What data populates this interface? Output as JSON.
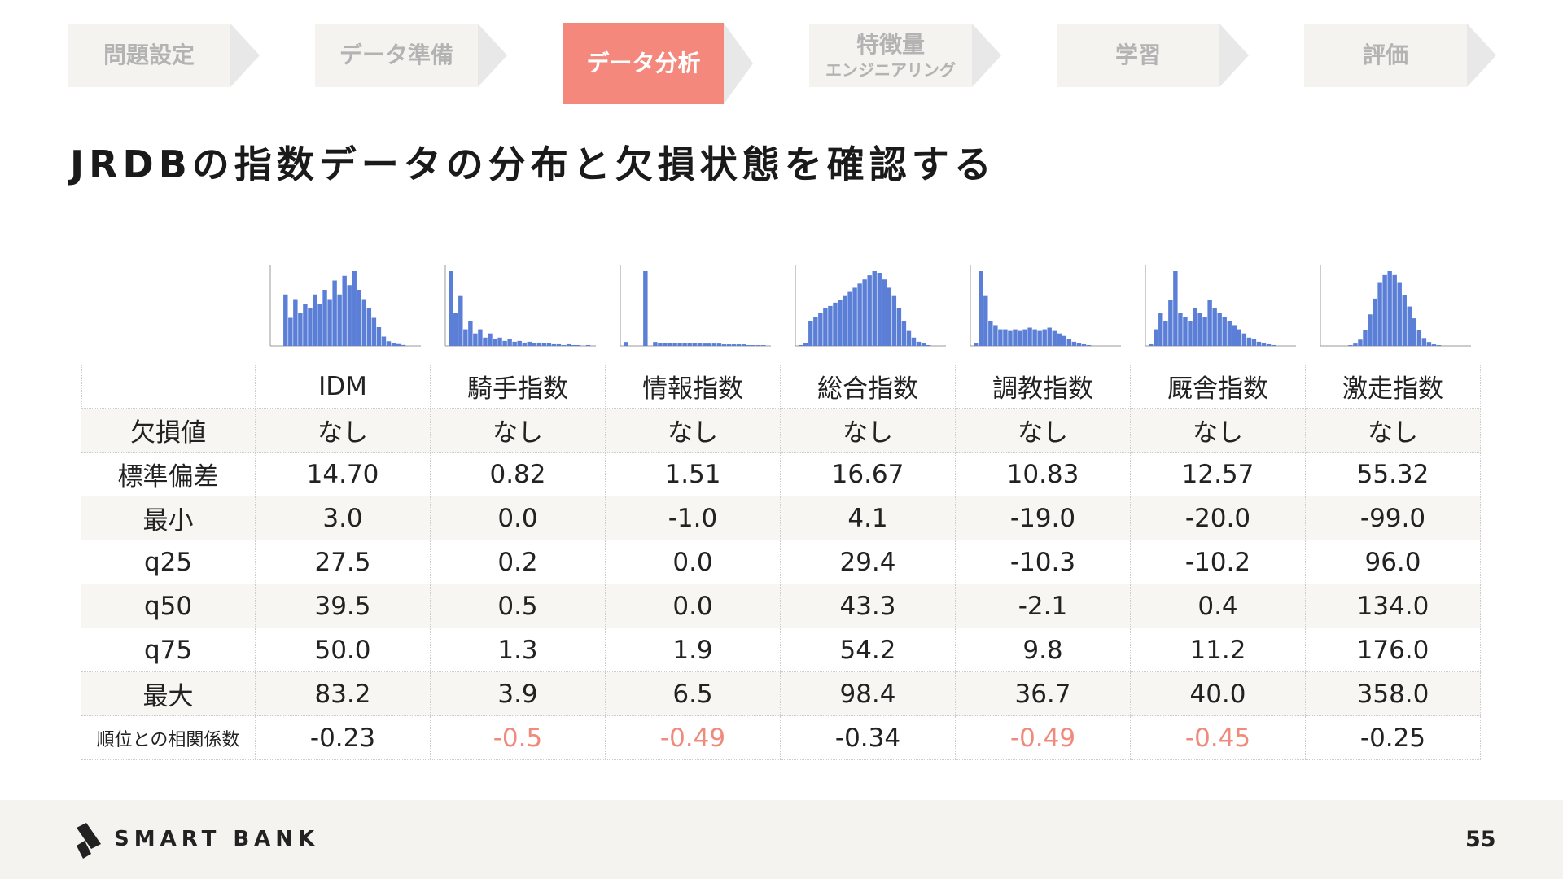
{
  "nav": {
    "items": [
      [
        "問題設定"
      ],
      [
        "データ準備"
      ],
      [
        "データ分析"
      ],
      [
        "特徴量",
        "エンジニアリング"
      ],
      [
        "学習"
      ],
      [
        "評価"
      ]
    ],
    "active": 2
  },
  "title": "JRDBの指数データの分布と欠損状態を確認する",
  "histograms": {
    "color": "#5b7fd6",
    "charts": [
      {
        "type": "bar",
        "values": [
          0,
          0,
          55,
          30,
          50,
          35,
          45,
          40,
          55,
          45,
          60,
          50,
          70,
          55,
          75,
          65,
          80,
          60,
          50,
          40,
          30,
          20,
          10,
          5,
          3,
          2,
          1,
          0,
          0,
          0
        ]
      },
      {
        "type": "bar",
        "values": [
          90,
          40,
          60,
          20,
          30,
          15,
          20,
          10,
          15,
          8,
          10,
          6,
          8,
          5,
          6,
          4,
          5,
          3,
          4,
          3,
          3,
          2,
          2,
          1,
          2,
          1,
          1,
          0,
          1,
          0
        ]
      },
      {
        "type": "bar",
        "values": [
          5,
          0,
          0,
          0,
          95,
          0,
          5,
          4,
          4,
          4,
          4,
          4,
          4,
          4,
          4,
          4,
          3,
          3,
          3,
          3,
          2,
          2,
          2,
          2,
          2,
          1,
          1,
          1,
          1,
          0
        ]
      },
      {
        "type": "bar",
        "values": [
          1,
          3,
          30,
          35,
          40,
          45,
          48,
          52,
          55,
          60,
          65,
          70,
          75,
          80,
          85,
          90,
          88,
          80,
          70,
          60,
          45,
          30,
          18,
          10,
          5,
          3,
          1,
          0,
          0,
          0
        ]
      },
      {
        "type": "bar",
        "values": [
          3,
          90,
          60,
          30,
          25,
          20,
          20,
          18,
          20,
          18,
          20,
          22,
          20,
          18,
          20,
          22,
          18,
          15,
          12,
          8,
          5,
          3,
          2,
          1,
          0,
          0,
          0,
          0,
          0,
          0
        ]
      },
      {
        "type": "bar",
        "values": [
          2,
          20,
          40,
          30,
          55,
          90,
          40,
          35,
          30,
          45,
          40,
          35,
          55,
          45,
          40,
          35,
          30,
          25,
          20,
          15,
          10,
          8,
          5,
          3,
          2,
          1,
          0,
          0,
          0,
          0
        ]
      },
      {
        "type": "bar",
        "values": [
          0,
          0,
          0,
          0,
          0,
          1,
          3,
          8,
          20,
          40,
          60,
          80,
          90,
          95,
          90,
          80,
          65,
          50,
          35,
          20,
          10,
          5,
          2,
          1,
          0,
          0,
          0,
          0,
          0,
          0
        ]
      }
    ]
  },
  "table": {
    "header": [
      "IDM",
      "騎手指数",
      "情報指数",
      "総合指数",
      "調教指数",
      "厩舎指数",
      "激走指数"
    ],
    "rows": [
      [
        "欠損値",
        "なし",
        "なし",
        "なし",
        "なし",
        "なし",
        "なし",
        "なし"
      ],
      [
        "標準偏差",
        "14.70",
        "0.82",
        "1.51",
        "16.67",
        "10.83",
        "12.57",
        "55.32"
      ],
      [
        "最小",
        "3.0",
        "0.0",
        "-1.0",
        "4.1",
        "-19.0",
        "-20.0",
        "-99.0"
      ],
      [
        "q25",
        "27.5",
        "0.2",
        "0.0",
        "29.4",
        "-10.3",
        "-10.2",
        "96.0"
      ],
      [
        "q50",
        "39.5",
        "0.5",
        "0.0",
        "43.3",
        "-2.1",
        "0.4",
        "134.0"
      ],
      [
        "q75",
        "50.0",
        "1.3",
        "1.9",
        "54.2",
        "9.8",
        "11.2",
        "176.0"
      ],
      [
        "最大",
        "83.2",
        "3.9",
        "6.5",
        "98.4",
        "36.7",
        "40.0",
        "358.0"
      ],
      [
        "順位との相関係数",
        "-0.23",
        "-0.5",
        "-0.49",
        "-0.34",
        "-0.49",
        "-0.45",
        "-0.25"
      ]
    ],
    "highlight": [
      [],
      [],
      [],
      [],
      [],
      [],
      [],
      [
        false,
        false,
        true,
        true,
        false,
        true,
        true,
        false
      ]
    ],
    "highlight_color": "#f08a7c"
  },
  "footer": {
    "logo": "SMART BANK",
    "page": "55"
  }
}
